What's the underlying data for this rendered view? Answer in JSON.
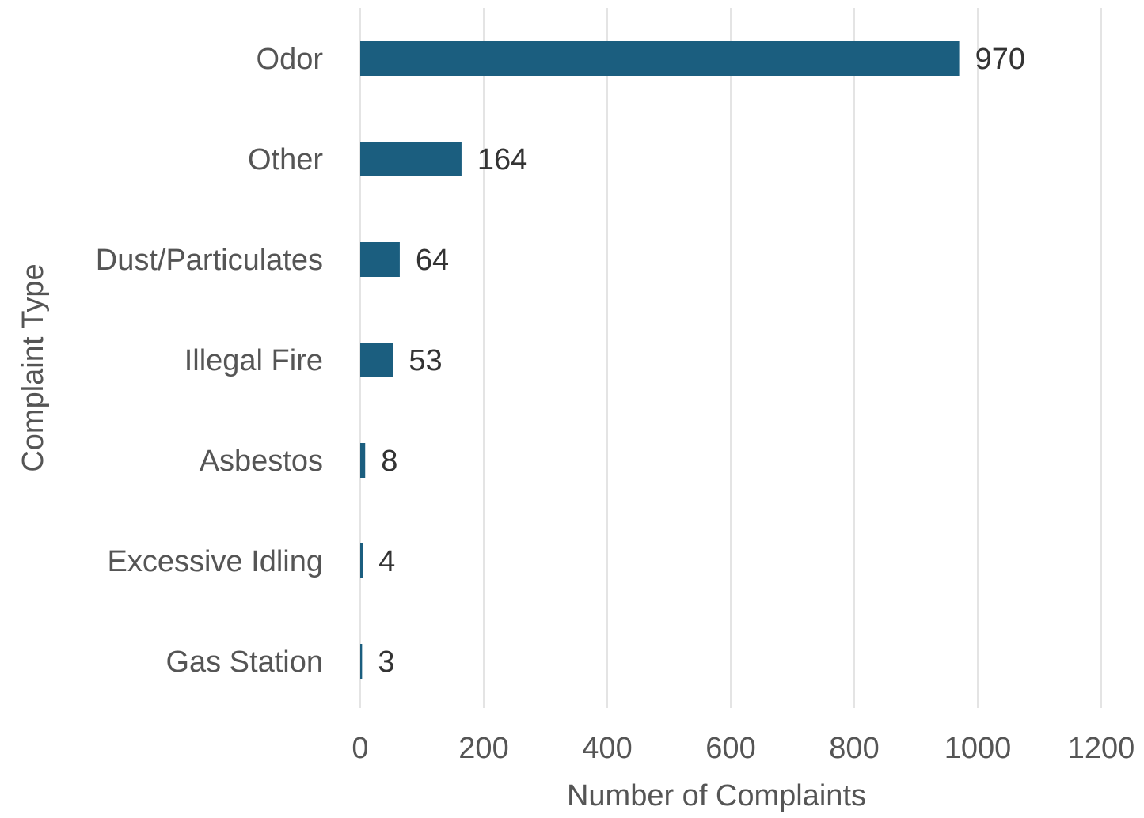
{
  "chart_data": {
    "type": "bar",
    "orientation": "horizontal",
    "title": "",
    "xlabel": "Number of Complaints",
    "ylabel": "Complaint Type",
    "categories": [
      "Odor",
      "Other",
      "Dust/Particulates",
      "Illegal Fire",
      "Asbestos",
      "Excessive Idling",
      "Gas Station"
    ],
    "values": [
      970,
      164,
      64,
      53,
      8,
      4,
      3
    ],
    "data_labels": [
      "970",
      "164",
      "64",
      "53",
      "8",
      "4",
      "3"
    ],
    "xlim": [
      0,
      1200
    ],
    "xticks": [
      0,
      200,
      400,
      600,
      800,
      1000,
      1200
    ],
    "xtick_labels": [
      "0",
      "200",
      "400",
      "600",
      "800",
      "1000",
      "1200"
    ],
    "grid": "vertical",
    "legend": "none",
    "bar_color": "#1b5e7f"
  }
}
